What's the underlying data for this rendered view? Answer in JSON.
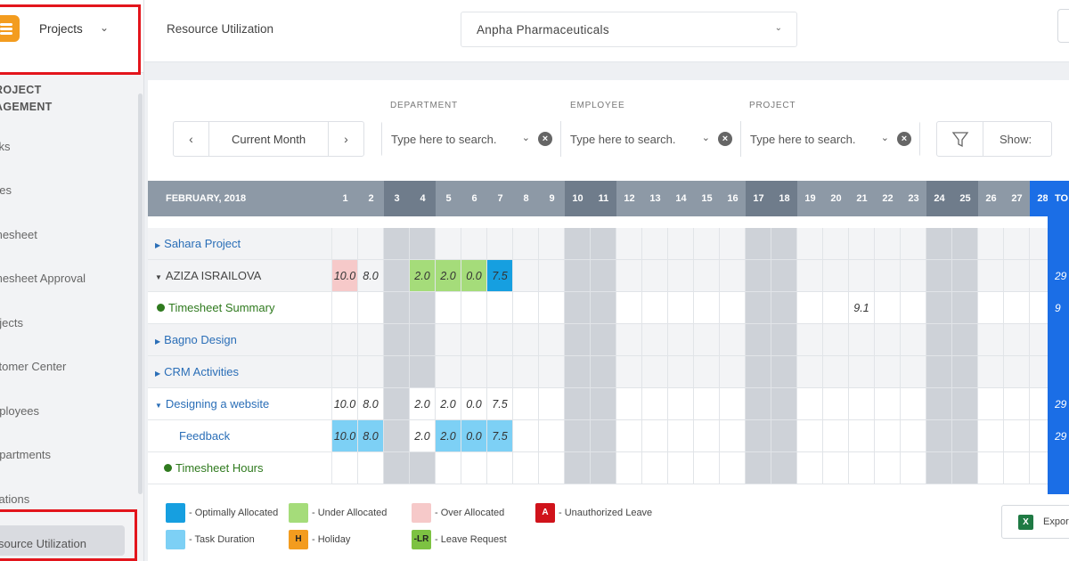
{
  "sidebar": {
    "selector_label": "Projects",
    "section_title": "PROJECT MANAGEMENT",
    "section_title_shown": "ROJECT\nAGEMENT",
    "items": [
      {
        "label": "sks"
      },
      {
        "label": "ues"
      },
      {
        "label": "mesheet"
      },
      {
        "label": "mesheet Approval"
      },
      {
        "label": "ojects"
      },
      {
        "label": "stomer Center"
      },
      {
        "label": "nployees"
      },
      {
        "label": "epartments"
      },
      {
        "label": "cations"
      },
      {
        "label": "source Utilization"
      }
    ]
  },
  "header": {
    "title": "Resource Utilization",
    "company": "Anpha Pharmaceuticals"
  },
  "filters": {
    "prev": "‹",
    "month": "Current Month",
    "next": "›",
    "department_label": "DEPARTMENT",
    "employee_label": "EMPLOYEE",
    "project_label": "PROJECT",
    "placeholder": "Type here to search.",
    "show_label": "Show:"
  },
  "grid": {
    "month_label": "FEBRUARY, 2018",
    "total_label": "TO",
    "days": [
      "1",
      "2",
      "3",
      "4",
      "5",
      "6",
      "7",
      "8",
      "9",
      "10",
      "11",
      "12",
      "13",
      "14",
      "15",
      "16",
      "17",
      "18",
      "19",
      "20",
      "21",
      "22",
      "23",
      "24",
      "25",
      "26",
      "27",
      "28"
    ],
    "header_colors": {
      "weekday": "#8d99a6",
      "weekend": "#6f7c8b",
      "today": "#1b6ee6"
    },
    "rows": [
      {
        "label": "Sahara Project",
        "type": "project",
        "tint": true,
        "total": ""
      },
      {
        "label": "AZIZA ISRAILOVA",
        "type": "employee",
        "tint": true,
        "total": "29",
        "cells": {
          "1": [
            "10.0",
            "over"
          ],
          "2": [
            "8.0",
            "over-plain"
          ],
          "4": [
            "2.0",
            "under"
          ],
          "5": [
            "2.0",
            "under"
          ],
          "6": [
            "0.0",
            "under"
          ],
          "7": [
            "7.5",
            "opt"
          ]
        }
      },
      {
        "label": "Timesheet Summary",
        "type": "summary",
        "tint": false,
        "total": "9",
        "cells": {
          "21": [
            "9.1",
            ""
          ]
        }
      },
      {
        "label": "Bagno Design",
        "type": "project",
        "tint": true,
        "total": ""
      },
      {
        "label": "CRM Activities",
        "type": "project",
        "tint": true,
        "total": ""
      },
      {
        "label": "Designing a website",
        "type": "project-open",
        "tint": false,
        "total": "29",
        "cells": {
          "1": [
            "10.0",
            ""
          ],
          "2": [
            "8.0",
            ""
          ],
          "4": [
            "2.0",
            ""
          ],
          "5": [
            "2.0",
            ""
          ],
          "6": [
            "0.0",
            ""
          ],
          "7": [
            "7.5",
            ""
          ]
        }
      },
      {
        "label": "Feedback",
        "type": "task",
        "tint": false,
        "total": "29",
        "cells": {
          "1": [
            "10.0",
            "task"
          ],
          "2": [
            "8.0",
            "task"
          ],
          "4": [
            "2.0",
            ""
          ],
          "5": [
            "2.0",
            "task"
          ],
          "6": [
            "0.0",
            "task"
          ],
          "7": [
            "7.5",
            "task"
          ]
        }
      },
      {
        "label": "Timesheet Hours",
        "type": "summary",
        "tint": false,
        "total": ""
      }
    ]
  },
  "legend": {
    "items": [
      {
        "label": "- Optimally Allocated",
        "color": "#169fe0",
        "mark": ""
      },
      {
        "label": "- Under Allocated",
        "color": "#a5dc7a",
        "mark": ""
      },
      {
        "label": "- Over Allocated",
        "color": "#f6c9c9",
        "mark": ""
      },
      {
        "label": "- Unauthorized Leave",
        "color": "#d0131b",
        "mark": "A"
      },
      {
        "label": "- Task Duration",
        "color": "#7dd0f5",
        "mark": ""
      },
      {
        "label": "- Holiday",
        "color": "#f39c1f",
        "mark": "H"
      },
      {
        "label": "- Leave Request",
        "color": "#7dc242",
        "mark": "-LR"
      }
    ],
    "export_label": "Expor"
  }
}
